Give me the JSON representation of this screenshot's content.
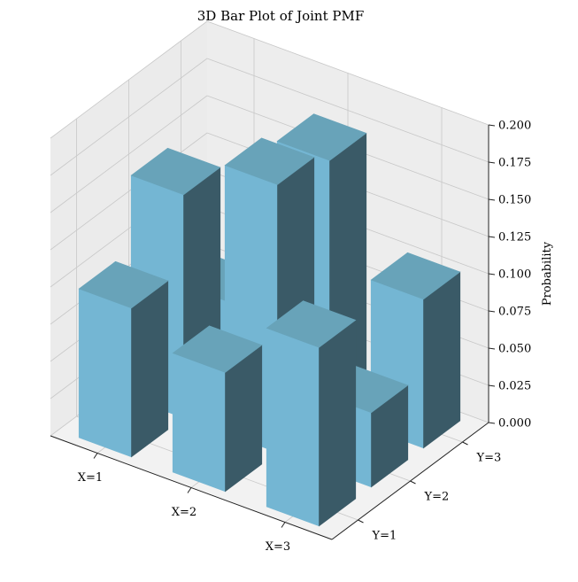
{
  "chart_data": {
    "type": "bar3d",
    "title": "3D Bar Plot of Joint PMF",
    "x_categories": [
      "X=1",
      "X=2",
      "X=3"
    ],
    "y_categories": [
      "Y=1",
      "Y=2",
      "Y=3"
    ],
    "zlabel": "Probability",
    "zlim": [
      0,
      0.2
    ],
    "z_ticks": [
      "0.000",
      "0.025",
      "0.050",
      "0.075",
      "0.100",
      "0.125",
      "0.150",
      "0.175",
      "0.200"
    ],
    "values": [
      {
        "x": "X=1",
        "y": "Y=1",
        "value": 0.1
      },
      {
        "x": "X=1",
        "y": "Y=2",
        "value": 0.15
      },
      {
        "x": "X=1",
        "y": "Y=3",
        "value": 0.05
      },
      {
        "x": "X=2",
        "y": "Y=1",
        "value": 0.08
      },
      {
        "x": "X=2",
        "y": "Y=2",
        "value": 0.18
      },
      {
        "x": "X=2",
        "y": "Y=3",
        "value": 0.17
      },
      {
        "x": "X=3",
        "y": "Y=1",
        "value": 0.12
      },
      {
        "x": "X=3",
        "y": "Y=2",
        "value": 0.05
      },
      {
        "x": "X=3",
        "y": "Y=3",
        "value": 0.1
      }
    ],
    "bar_color": "#74b6d3",
    "grid": true
  }
}
